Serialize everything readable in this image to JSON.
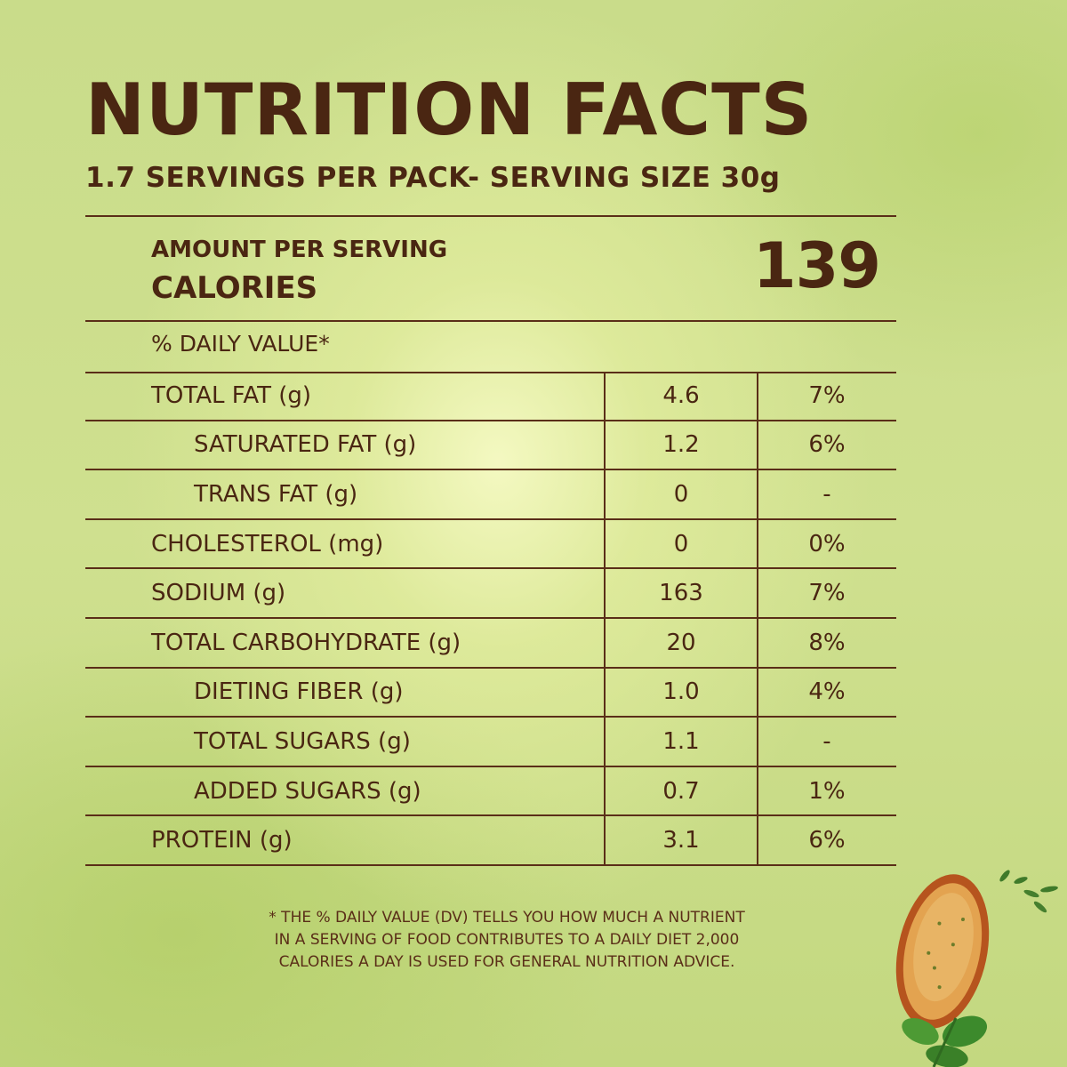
{
  "header": {
    "title": "NUTRITION FACTS",
    "subtitle": "1.7 SERVINGS PER PACK- SERVING SIZE 30g"
  },
  "calories": {
    "amount_label": "AMOUNT PER SERVING",
    "label": "CALORIES",
    "value": "139"
  },
  "daily_value_header": "% DAILY VALUE*",
  "nutrients": [
    {
      "name": "TOTAL FAT (g)",
      "amount": "4.6",
      "dv": "7%"
    },
    {
      "name": "SATURATED FAT (g)",
      "amount": "1.2",
      "dv": "6%"
    },
    {
      "name": "TRANS FAT (g)",
      "amount": "0",
      "dv": "-"
    },
    {
      "name": "CHOLESTEROL (mg)",
      "amount": "0",
      "dv": "0%"
    },
    {
      "name": "SODIUM (g)",
      "amount": "163",
      "dv": "7%"
    },
    {
      "name": "TOTAL CARBOHYDRATE (g)",
      "amount": "20",
      "dv": "8%"
    },
    {
      "name": "DIETING FIBER (g)",
      "amount": "1.0",
      "dv": "4%"
    },
    {
      "name": "TOTAL SUGARS (g)",
      "amount": "1.1",
      "dv": "-"
    },
    {
      "name": "ADDED SUGARS (g)",
      "amount": "0.7",
      "dv": "1%"
    },
    {
      "name": "PROTEIN (g)",
      "amount": "3.1",
      "dv": "6%"
    }
  ],
  "footnote": {
    "line1": "* THE % DAILY VALUE (DV) TELLS YOU HOW MUCH A NUTRIENT",
    "line2": "IN A SERVING OF FOOD CONTRIBUTES TO A DAILY DIET 2,000",
    "line3": "CALORIES A DAY IS USED FOR GENERAL NUTRITION ADVICE."
  },
  "colors": {
    "text": "#4a2612",
    "background": "#cfe08f",
    "highlight": "#f6fac4"
  },
  "decoration": {
    "icon": "toasted-bread-with-basil-icon"
  }
}
